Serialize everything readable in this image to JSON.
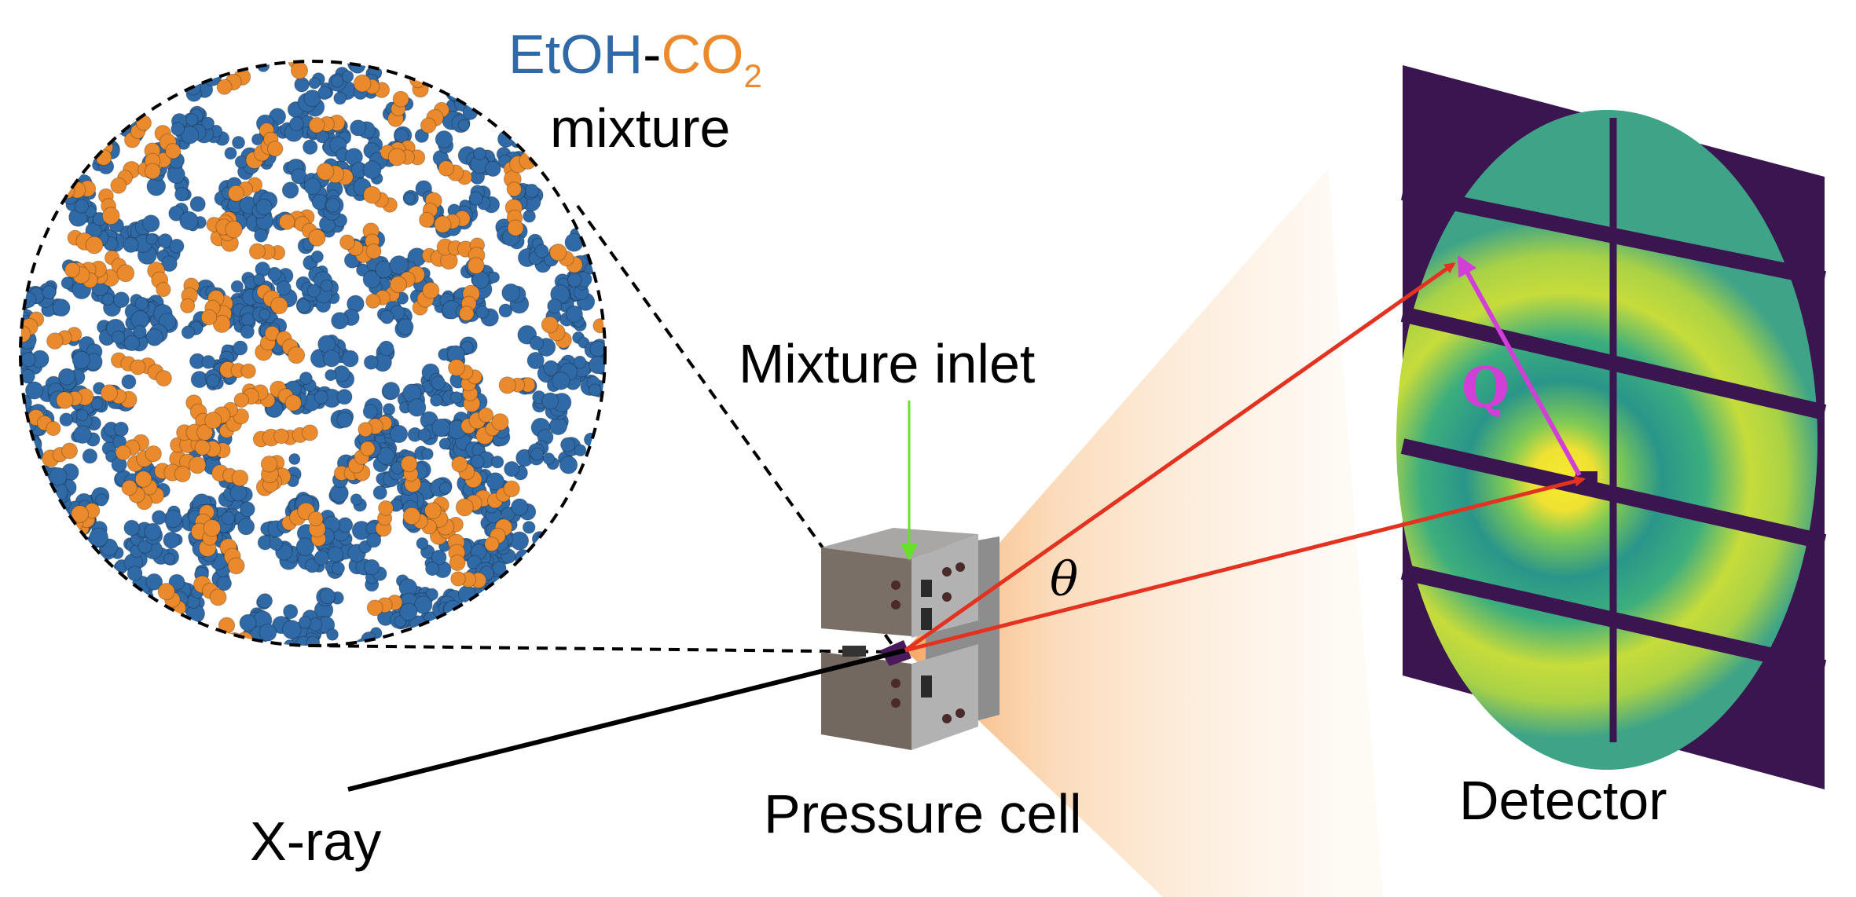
{
  "title": {
    "solvent": "EtOH",
    "hyphen": "-",
    "gas": "CO",
    "gas_subscript": "2",
    "second_line": "mixture"
  },
  "labels": {
    "inlet": "Mixture inlet",
    "cell": "Pressure cell",
    "detector": "Detector",
    "xray": "X-ray",
    "angle": "θ",
    "scattering_vector": "Q"
  },
  "colors": {
    "ethanol": "#2f69a6",
    "co2": "#ea8a2c",
    "xray_beam": "#000000",
    "scattered_beam": "#e3321f",
    "q_vector": "#d23fd6",
    "inlet_arrow": "#66e02a",
    "detector_background": "#3a1550",
    "detector_ring_bright": "#f2e32a",
    "detector_ring_mid": "#2aa184"
  },
  "icons": {
    "molecules": "molecular-dynamics-snapshot",
    "cell": "pressure-cell-block",
    "detector": "2d-area-detector"
  }
}
